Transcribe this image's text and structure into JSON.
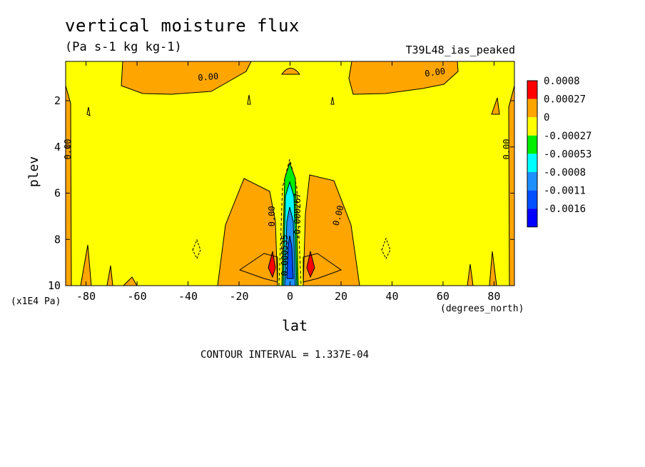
{
  "figure": {
    "title": "vertical moisture flux",
    "units": "(Pa s-1 kg kg-1)",
    "run_label": "T39L48_ias_peaked",
    "contour_interval": "CONTOUR INTERVAL = 1.337E-04"
  },
  "chart_data": {
    "type": "heatmap",
    "xlabel": "lat",
    "ylabel": "plev",
    "xunit": "(degrees_north)",
    "yunit": "(x1E4 Pa)",
    "xlim": [
      -88,
      88
    ],
    "ylim": [
      10,
      0.3
    ],
    "xticks": [
      -80,
      -60,
      -40,
      -20,
      0,
      20,
      40,
      60,
      80
    ],
    "yticks": [
      2,
      4,
      6,
      8,
      10
    ],
    "xtick_labels": [
      "-80",
      "-60",
      "-40",
      "-20",
      "0",
      "20",
      "40",
      "60",
      "80"
    ],
    "ytick_labels": [
      "2",
      "4",
      "6",
      "8",
      "10"
    ],
    "legend": {
      "position": "right",
      "levels": [
        "0.0008",
        "0.00027",
        "0",
        "-0.00027",
        "-0.00053",
        "-0.0008",
        "-0.0011",
        "-0.0016"
      ],
      "colors": [
        "#ff0000",
        "#ffa500",
        "#ffff00",
        "#00ee00",
        "#00ffff",
        "#1e90ff",
        "#0050ff",
        "#0000ff"
      ]
    },
    "contour_labels": [
      {
        "text": "0.00",
        "x": -32,
        "y": 1.1,
        "angle": -5
      },
      {
        "text": "0.00",
        "x": 57,
        "y": 0.9,
        "angle": -8
      },
      {
        "text": "0.00",
        "x": -86,
        "y": 4.1,
        "angle": -90
      },
      {
        "text": "0.00",
        "x": 86,
        "y": 4.1,
        "angle": -90
      },
      {
        "text": "0.00",
        "x": -6,
        "y": 7.0,
        "angle": -90
      },
      {
        "text": "0.00",
        "x": 20,
        "y": 7.0,
        "angle": -75
      },
      {
        "text": "-0.000267",
        "x": 4,
        "y": 7.0,
        "angle": -90
      },
      {
        "text": "-0.000535",
        "x": -1,
        "y": 8.8,
        "angle": -90
      }
    ]
  }
}
